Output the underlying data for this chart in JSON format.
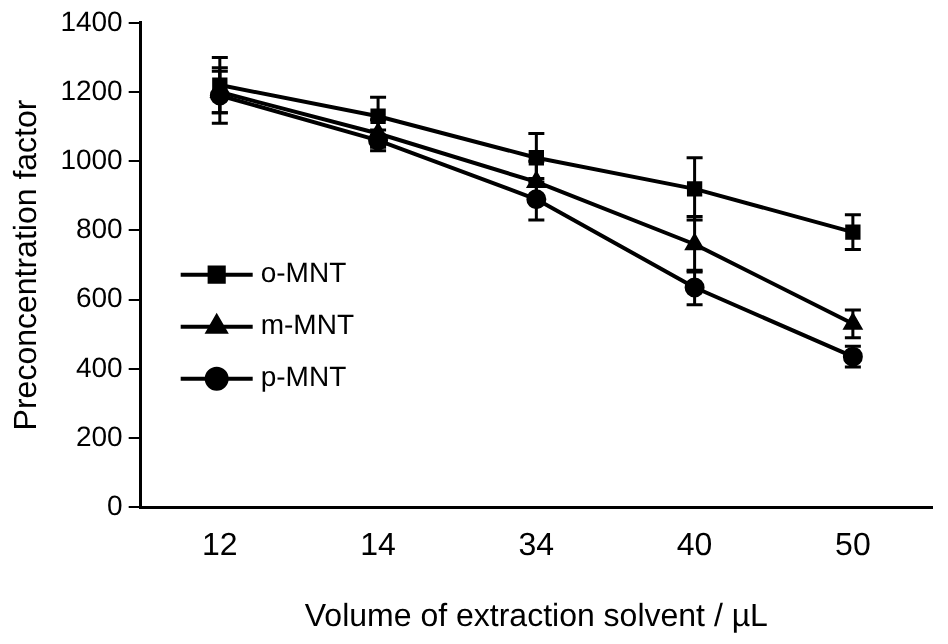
{
  "chart_data": {
    "type": "line",
    "xlabel": "Volume of extraction solvent / µL",
    "ylabel": "Preconcentration factor",
    "categories": [
      "12",
      "14",
      "34",
      "40",
      "50"
    ],
    "series": [
      {
        "name": "o-MNT",
        "color": "#000000",
        "marker": "square",
        "values": [
          1220,
          1130,
          1010,
          920,
          795
        ],
        "errors": [
          80,
          55,
          70,
          90,
          50
        ]
      },
      {
        "name": "m-MNT",
        "color": "#000000",
        "marker": "triangle",
        "values": [
          1200,
          1080,
          940,
          760,
          530
        ],
        "errors": [
          60,
          40,
          60,
          80,
          40
        ]
      },
      {
        "name": "p-MNT",
        "color": "#000000",
        "marker": "circle",
        "values": [
          1190,
          1060,
          890,
          635,
          435
        ],
        "errors": [
          80,
          30,
          60,
          50,
          30
        ]
      }
    ],
    "ylim": [
      0,
      1400
    ],
    "yticks": [
      0,
      200,
      400,
      600,
      800,
      1000,
      1200,
      1400
    ],
    "grid": false,
    "legend": "left",
    "line_style": "solid"
  }
}
